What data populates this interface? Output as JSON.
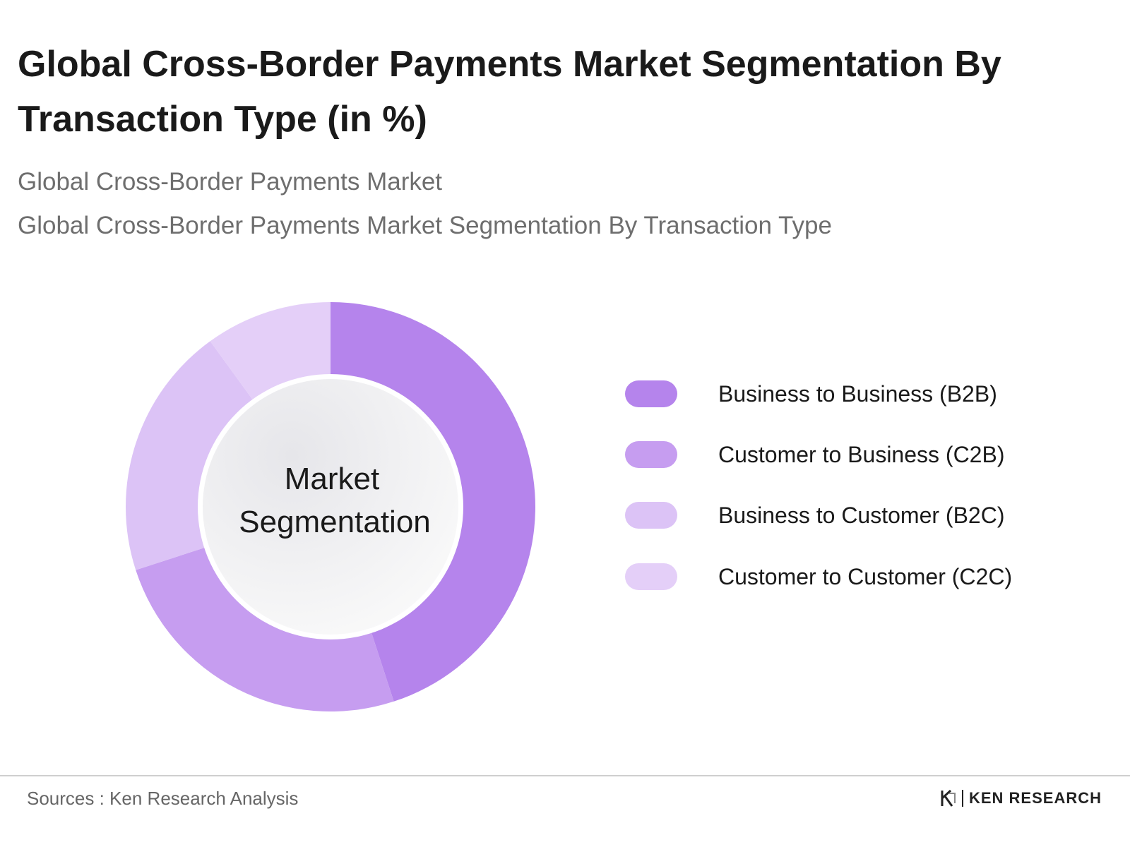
{
  "title": "Global Cross-Border Payments Market Segmentation By Transaction Type (in %)",
  "subtitle_1": "Global Cross-Border Payments Market",
  "subtitle_2": "Global Cross-Border Payments Market Segmentation By Transaction Type",
  "center_label": [
    "Market",
    "Segmentation"
  ],
  "source": "Sources : Ken Research Analysis",
  "brand": "KEN RESEARCH",
  "chart_data": {
    "type": "pie",
    "donut": true,
    "legend_position": "right",
    "categories": [
      "Business to Business (B2B)",
      "Customer to Business (C2B)",
      "Business to Customer (B2C)",
      "Customer to Customer (C2C)"
    ],
    "values": [
      45,
      25,
      20,
      10
    ],
    "colors": [
      "#b584ec",
      "#c69df0",
      "#dcc3f6",
      "#e4cff8"
    ]
  }
}
